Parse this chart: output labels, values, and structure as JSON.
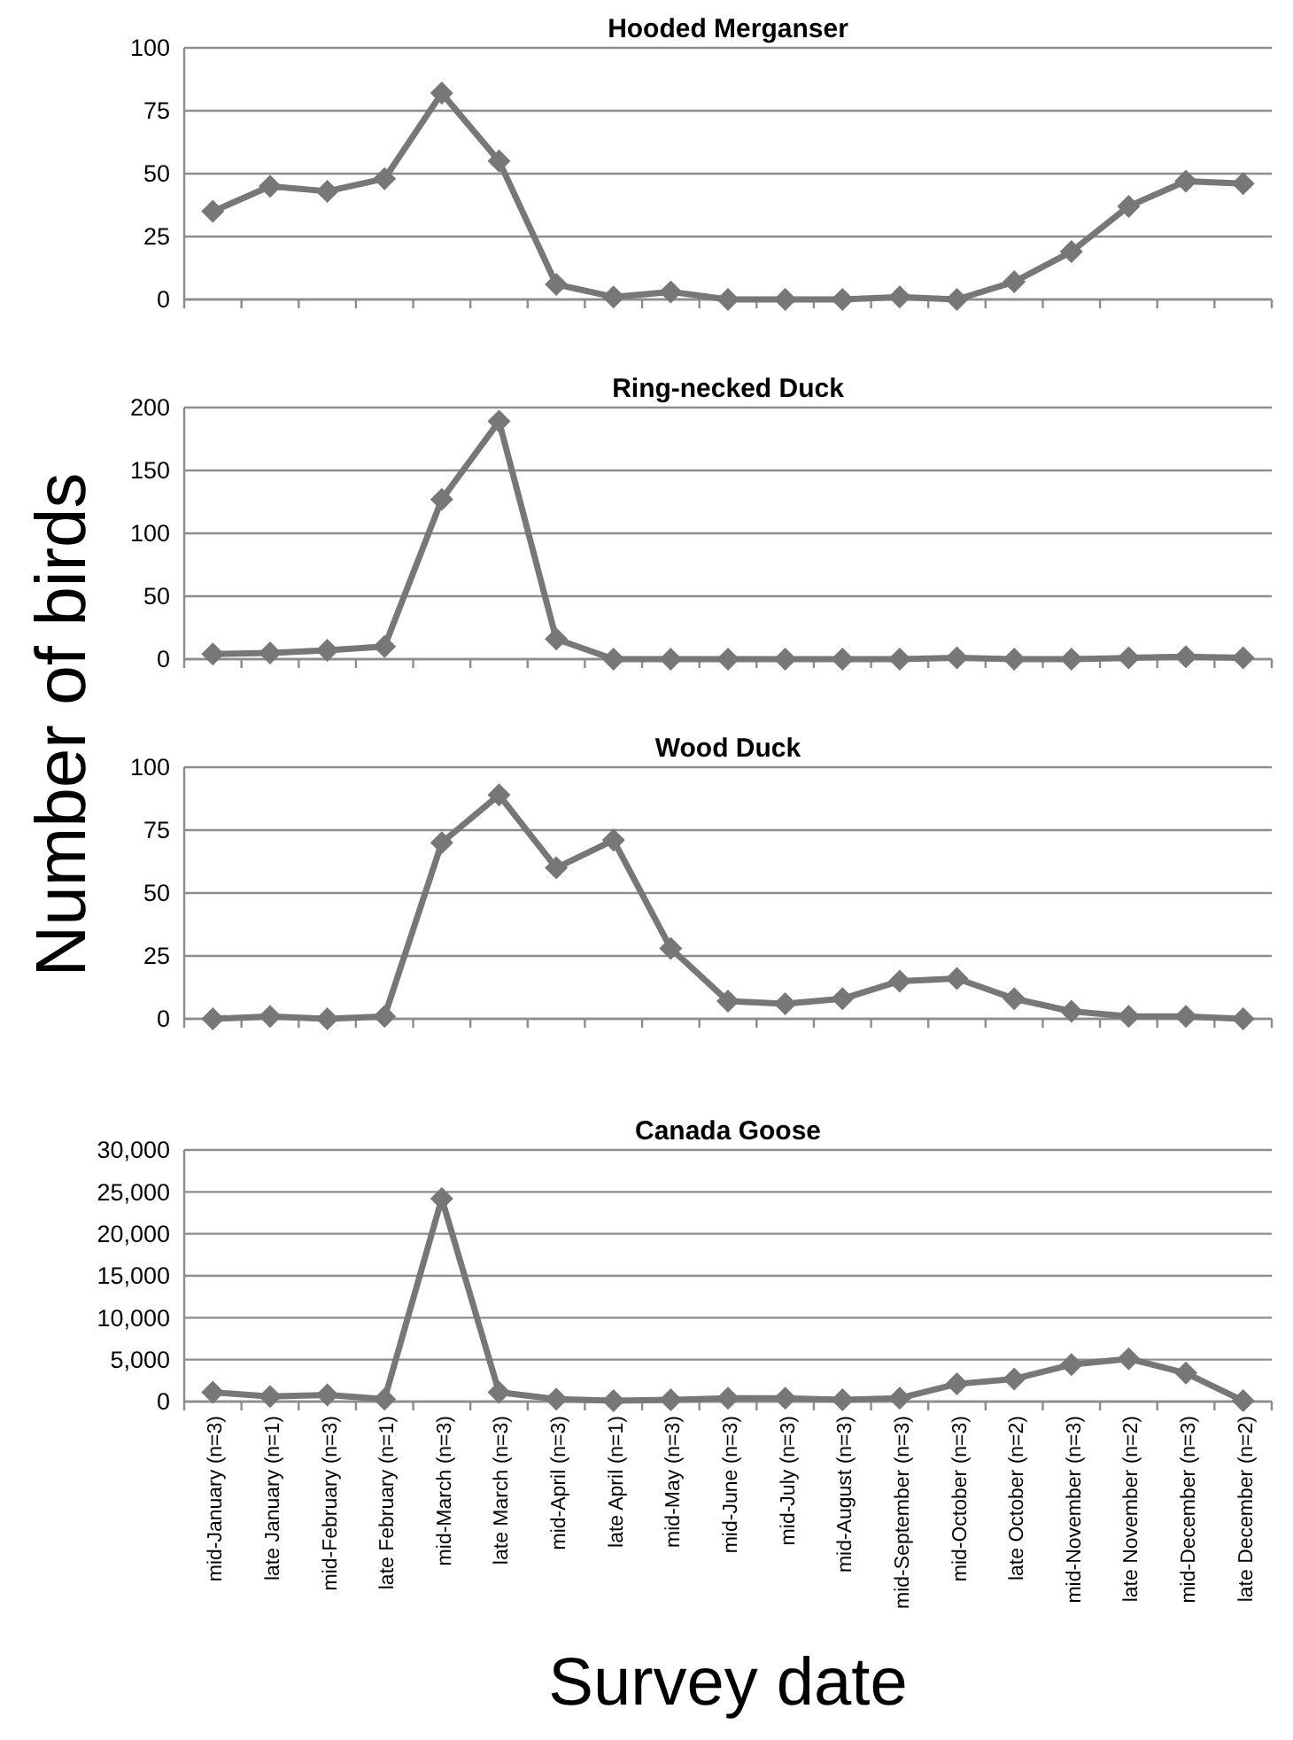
{
  "chart_data": [
    {
      "type": "line",
      "title": "Hooded Merganser",
      "ylabel": "Number of birds",
      "categories": [
        null,
        null,
        null,
        null,
        null,
        null,
        null,
        null,
        null,
        null,
        null,
        null,
        null,
        null,
        null,
        null,
        null,
        null,
        null
      ],
      "series": [
        {
          "color": "#777777",
          "values": [
            35,
            45,
            43,
            48,
            82,
            55,
            6,
            1,
            3,
            0,
            0,
            0,
            1,
            0,
            7,
            19,
            37,
            47,
            46
          ]
        }
      ],
      "ylim": [
        0,
        100
      ],
      "yticks": [
        0,
        25,
        50,
        75,
        100
      ],
      "grid": "y",
      "marker": "diamond",
      "tick_labels": "y"
    },
    {
      "type": "line",
      "title": "Ring-necked Duck",
      "categories": [
        null,
        null,
        null,
        null,
        null,
        null,
        null,
        null,
        null,
        null,
        null,
        null,
        null,
        null,
        null,
        null,
        null,
        null,
        null
      ],
      "series": [
        {
          "color": "#777777",
          "values": [
            4,
            5,
            7,
            10,
            127,
            189,
            16,
            0,
            0,
            0,
            0,
            0,
            0,
            1,
            0,
            0,
            1,
            2,
            1
          ]
        }
      ],
      "ylim": [
        0,
        200
      ],
      "yticks": [
        0,
        50,
        100,
        150,
        200
      ],
      "grid": "y",
      "marker": "diamond",
      "tick_labels": "y"
    },
    {
      "type": "line",
      "title": "Wood Duck",
      "categories": [
        null,
        null,
        null,
        null,
        null,
        null,
        null,
        null,
        null,
        null,
        null,
        null,
        null,
        null,
        null,
        null,
        null,
        null,
        null
      ],
      "series": [
        {
          "color": "#777777",
          "values": [
            0,
            1,
            0,
            1,
            70,
            89,
            60,
            71,
            28,
            7,
            6,
            8,
            15,
            16,
            8,
            3,
            1,
            1,
            0
          ]
        }
      ],
      "ylim": [
        0,
        100
      ],
      "yticks": [
        0,
        25,
        50,
        75,
        100
      ],
      "grid": "y",
      "marker": "diamond",
      "tick_labels": "y"
    },
    {
      "type": "line",
      "title": "Canada Goose",
      "xlabel": "Survey date",
      "categories": [
        "mid-January (n=3)",
        "late January (n=1)",
        "mid-February (n=3)",
        "late February (n=1)",
        "mid-March (n=3)",
        "late March (n=3)",
        "mid-April (n=3)",
        "late April (n=1)",
        "mid-May (n=3)",
        "mid-June (n=3)",
        "mid-July (n=3)",
        "mid-August (n=3)",
        "mid-September (n=3)",
        "mid-October (n=3)",
        "late October (n=2)",
        "mid-November (n=3)",
        "late November (n=2)",
        "mid-December (n=3)",
        "late December (n=2)"
      ],
      "series": [
        {
          "color": "#777777",
          "values": [
            1100,
            600,
            800,
            300,
            24200,
            1100,
            300,
            100,
            200,
            400,
            400,
            200,
            400,
            2100,
            2700,
            4400,
            5100,
            3400,
            100
          ]
        }
      ],
      "ylim": [
        0,
        30000
      ],
      "yticks": [
        {
          "value": 0,
          "label": "0"
        },
        {
          "value": 5000,
          "label": "5,000"
        },
        {
          "value": 10000,
          "label": "10,000"
        },
        {
          "value": 15000,
          "label": "15,000"
        },
        {
          "value": 20000,
          "label": "20,000"
        },
        {
          "value": 25000,
          "label": "25,000"
        },
        {
          "value": 30000,
          "label": "30,000"
        }
      ],
      "grid": "y",
      "marker": "diamond"
    }
  ]
}
